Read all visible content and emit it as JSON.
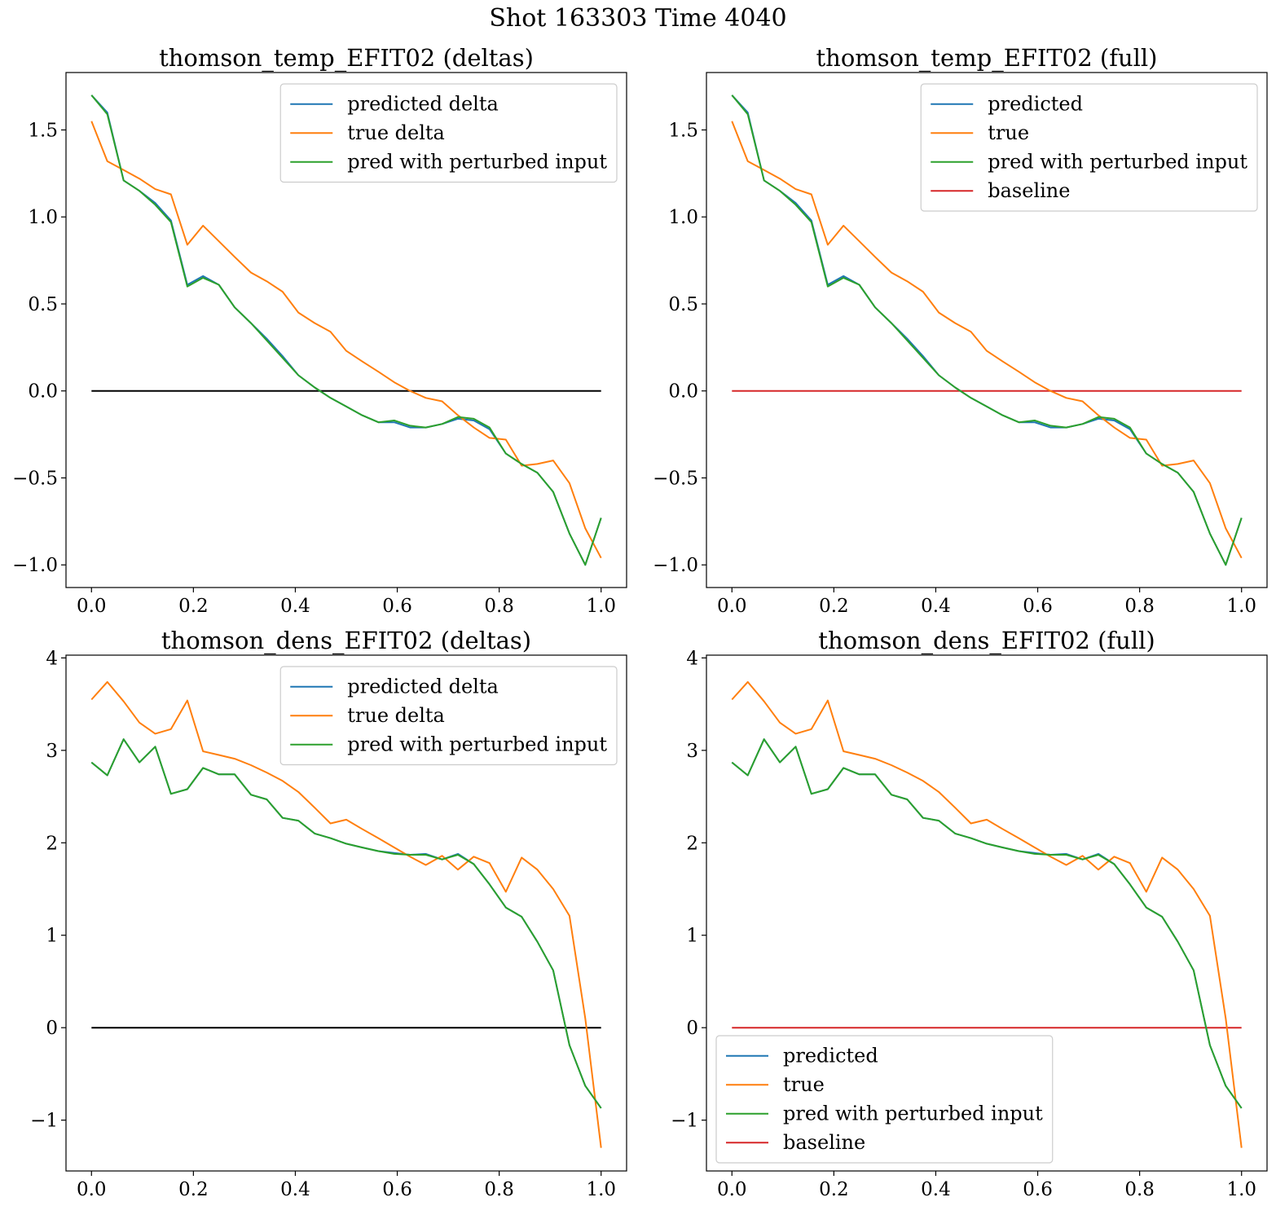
{
  "figure": {
    "suptitle": "Shot 163303   Time 4040"
  },
  "colors": {
    "predicted": "#1f77b4",
    "true": "#ff7f0e",
    "perturbed": "#2ca02c",
    "baseline": "#d62728",
    "zero_line": "#000000"
  },
  "chart_data": [
    {
      "type": "line",
      "title": "thomson_temp_EFIT02 (deltas)",
      "xlim": [
        -0.05,
        1.05
      ],
      "ylim": [
        -1.13,
        1.83
      ],
      "xticks": [
        "0.0",
        "0.2",
        "0.4",
        "0.6",
        "0.8",
        "1.0"
      ],
      "yticks": [
        "1.5",
        "1.0",
        "0.5",
        "0.0",
        "−0.5",
        "−1.0"
      ],
      "legend": {
        "location": "upper right"
      },
      "series": [
        {
          "name": "predicted delta",
          "color": "#1f77b4",
          "x": [
            0.0,
            0.031,
            0.063,
            0.094,
            0.125,
            0.156,
            0.188,
            0.219,
            0.25,
            0.281,
            0.313,
            0.344,
            0.375,
            0.406,
            0.438,
            0.469,
            0.5,
            0.531,
            0.563,
            0.594,
            0.625,
            0.656,
            0.688,
            0.719,
            0.75,
            0.781,
            0.813,
            0.844,
            0.875,
            0.906,
            0.938,
            0.969,
            1.0
          ],
          "y": [
            1.7,
            1.6,
            1.21,
            1.15,
            1.08,
            0.98,
            0.61,
            0.66,
            0.61,
            0.48,
            0.39,
            0.3,
            0.2,
            0.09,
            0.02,
            -0.04,
            -0.09,
            -0.14,
            -0.18,
            -0.18,
            -0.21,
            -0.21,
            -0.19,
            -0.16,
            -0.17,
            -0.22,
            -0.36,
            -0.42,
            -0.47,
            -0.58,
            -0.82,
            -1.0,
            -0.73
          ]
        },
        {
          "name": "true delta",
          "color": "#ff7f0e",
          "x": [
            0.0,
            0.031,
            0.063,
            0.094,
            0.125,
            0.156,
            0.188,
            0.219,
            0.25,
            0.281,
            0.313,
            0.344,
            0.375,
            0.406,
            0.438,
            0.469,
            0.5,
            0.531,
            0.563,
            0.594,
            0.625,
            0.656,
            0.688,
            0.719,
            0.75,
            0.781,
            0.813,
            0.844,
            0.875,
            0.906,
            0.938,
            0.969,
            1.0
          ],
          "y": [
            1.55,
            1.32,
            1.27,
            1.22,
            1.16,
            1.13,
            0.84,
            0.95,
            0.86,
            0.77,
            0.68,
            0.63,
            0.57,
            0.45,
            0.39,
            0.34,
            0.23,
            0.17,
            0.11,
            0.05,
            0.0,
            -0.04,
            -0.06,
            -0.14,
            -0.21,
            -0.27,
            -0.28,
            -0.43,
            -0.42,
            -0.4,
            -0.53,
            -0.79,
            -0.96
          ]
        },
        {
          "name": "pred with perturbed input",
          "color": "#2ca02c",
          "x": [
            0.0,
            0.031,
            0.063,
            0.094,
            0.125,
            0.156,
            0.188,
            0.219,
            0.25,
            0.281,
            0.313,
            0.344,
            0.375,
            0.406,
            0.438,
            0.469,
            0.5,
            0.531,
            0.563,
            0.594,
            0.625,
            0.656,
            0.688,
            0.719,
            0.75,
            0.781,
            0.813,
            0.844,
            0.875,
            0.906,
            0.938,
            0.969,
            1.0
          ],
          "y": [
            1.7,
            1.59,
            1.21,
            1.15,
            1.07,
            0.97,
            0.6,
            0.65,
            0.61,
            0.48,
            0.39,
            0.29,
            0.19,
            0.09,
            0.02,
            -0.04,
            -0.09,
            -0.14,
            -0.18,
            -0.17,
            -0.2,
            -0.21,
            -0.19,
            -0.15,
            -0.16,
            -0.21,
            -0.36,
            -0.42,
            -0.47,
            -0.58,
            -0.82,
            -1.0,
            -0.73
          ]
        },
        {
          "name": "",
          "color": "#000000",
          "x": [
            0.0,
            1.0
          ],
          "y": [
            0.0,
            0.0
          ]
        }
      ]
    },
    {
      "type": "line",
      "title": "thomson_temp_EFIT02 (full)",
      "xlim": [
        -0.05,
        1.05
      ],
      "ylim": [
        -1.13,
        1.83
      ],
      "xticks": [
        "0.0",
        "0.2",
        "0.4",
        "0.6",
        "0.8",
        "1.0"
      ],
      "yticks": [
        "1.5",
        "1.0",
        "0.5",
        "0.0",
        "−0.5",
        "−1.0"
      ],
      "legend": {
        "location": "upper right"
      },
      "series": [
        {
          "name": "predicted",
          "color": "#1f77b4",
          "x": [
            0.0,
            0.031,
            0.063,
            0.094,
            0.125,
            0.156,
            0.188,
            0.219,
            0.25,
            0.281,
            0.313,
            0.344,
            0.375,
            0.406,
            0.438,
            0.469,
            0.5,
            0.531,
            0.563,
            0.594,
            0.625,
            0.656,
            0.688,
            0.719,
            0.75,
            0.781,
            0.813,
            0.844,
            0.875,
            0.906,
            0.938,
            0.969,
            1.0
          ],
          "y": [
            1.7,
            1.6,
            1.21,
            1.15,
            1.08,
            0.98,
            0.61,
            0.66,
            0.61,
            0.48,
            0.39,
            0.3,
            0.2,
            0.09,
            0.02,
            -0.04,
            -0.09,
            -0.14,
            -0.18,
            -0.18,
            -0.21,
            -0.21,
            -0.19,
            -0.16,
            -0.17,
            -0.22,
            -0.36,
            -0.42,
            -0.47,
            -0.58,
            -0.82,
            -1.0,
            -0.73
          ]
        },
        {
          "name": "true",
          "color": "#ff7f0e",
          "x": [
            0.0,
            0.031,
            0.063,
            0.094,
            0.125,
            0.156,
            0.188,
            0.219,
            0.25,
            0.281,
            0.313,
            0.344,
            0.375,
            0.406,
            0.438,
            0.469,
            0.5,
            0.531,
            0.563,
            0.594,
            0.625,
            0.656,
            0.688,
            0.719,
            0.75,
            0.781,
            0.813,
            0.844,
            0.875,
            0.906,
            0.938,
            0.969,
            1.0
          ],
          "y": [
            1.55,
            1.32,
            1.27,
            1.22,
            1.16,
            1.13,
            0.84,
            0.95,
            0.86,
            0.77,
            0.68,
            0.63,
            0.57,
            0.45,
            0.39,
            0.34,
            0.23,
            0.17,
            0.11,
            0.05,
            0.0,
            -0.04,
            -0.06,
            -0.14,
            -0.21,
            -0.27,
            -0.28,
            -0.43,
            -0.42,
            -0.4,
            -0.53,
            -0.79,
            -0.96
          ]
        },
        {
          "name": "pred with perturbed input",
          "color": "#2ca02c",
          "x": [
            0.0,
            0.031,
            0.063,
            0.094,
            0.125,
            0.156,
            0.188,
            0.219,
            0.25,
            0.281,
            0.313,
            0.344,
            0.375,
            0.406,
            0.438,
            0.469,
            0.5,
            0.531,
            0.563,
            0.594,
            0.625,
            0.656,
            0.688,
            0.719,
            0.75,
            0.781,
            0.813,
            0.844,
            0.875,
            0.906,
            0.938,
            0.969,
            1.0
          ],
          "y": [
            1.7,
            1.59,
            1.21,
            1.15,
            1.07,
            0.97,
            0.6,
            0.65,
            0.61,
            0.48,
            0.39,
            0.29,
            0.19,
            0.09,
            0.02,
            -0.04,
            -0.09,
            -0.14,
            -0.18,
            -0.17,
            -0.2,
            -0.21,
            -0.19,
            -0.15,
            -0.16,
            -0.21,
            -0.36,
            -0.42,
            -0.47,
            -0.58,
            -0.82,
            -1.0,
            -0.73
          ]
        },
        {
          "name": "baseline",
          "color": "#d62728",
          "x": [
            0.0,
            1.0
          ],
          "y": [
            0.0,
            0.0
          ]
        }
      ]
    },
    {
      "type": "line",
      "title": "thomson_dens_EFIT02 (deltas)",
      "xlim": [
        -0.05,
        1.05
      ],
      "ylim": [
        -1.55,
        4.03
      ],
      "xticks": [
        "0.0",
        "0.2",
        "0.4",
        "0.6",
        "0.8",
        "1.0"
      ],
      "yticks": [
        "4",
        "3",
        "2",
        "1",
        "0",
        "−1"
      ],
      "legend": {
        "location": "upper right"
      },
      "series": [
        {
          "name": "predicted delta",
          "color": "#1f77b4",
          "x": [
            0.0,
            0.031,
            0.063,
            0.094,
            0.125,
            0.156,
            0.188,
            0.219,
            0.25,
            0.281,
            0.313,
            0.344,
            0.375,
            0.406,
            0.438,
            0.469,
            0.5,
            0.531,
            0.563,
            0.594,
            0.625,
            0.656,
            0.688,
            0.719,
            0.75,
            0.781,
            0.813,
            0.844,
            0.875,
            0.906,
            0.938,
            0.969,
            1.0
          ],
          "y": [
            2.87,
            2.73,
            3.12,
            2.87,
            3.04,
            2.53,
            2.58,
            2.81,
            2.74,
            2.74,
            2.52,
            2.47,
            2.27,
            2.24,
            2.1,
            2.05,
            1.99,
            1.95,
            1.91,
            1.89,
            1.87,
            1.88,
            1.82,
            1.88,
            1.77,
            1.55,
            1.3,
            1.2,
            0.93,
            0.62,
            -0.19,
            -0.63,
            -0.87
          ]
        },
        {
          "name": "true delta",
          "color": "#ff7f0e",
          "x": [
            0.0,
            0.031,
            0.063,
            0.094,
            0.125,
            0.156,
            0.188,
            0.219,
            0.25,
            0.281,
            0.313,
            0.344,
            0.375,
            0.406,
            0.438,
            0.469,
            0.5,
            0.531,
            0.563,
            0.594,
            0.625,
            0.656,
            0.688,
            0.719,
            0.75,
            0.781,
            0.813,
            0.844,
            0.875,
            0.906,
            0.938,
            0.969,
            1.0
          ],
          "y": [
            3.55,
            3.74,
            3.53,
            3.3,
            3.18,
            3.23,
            3.54,
            2.99,
            2.95,
            2.91,
            2.84,
            2.76,
            2.67,
            2.55,
            2.38,
            2.21,
            2.25,
            2.15,
            2.05,
            1.95,
            1.85,
            1.76,
            1.86,
            1.71,
            1.85,
            1.78,
            1.47,
            1.84,
            1.71,
            1.5,
            1.21,
            0.1,
            -1.3
          ]
        },
        {
          "name": "pred with perturbed input",
          "color": "#2ca02c",
          "x": [
            0.0,
            0.031,
            0.063,
            0.094,
            0.125,
            0.156,
            0.188,
            0.219,
            0.25,
            0.281,
            0.313,
            0.344,
            0.375,
            0.406,
            0.438,
            0.469,
            0.5,
            0.531,
            0.563,
            0.594,
            0.625,
            0.656,
            0.688,
            0.719,
            0.75,
            0.781,
            0.813,
            0.844,
            0.875,
            0.906,
            0.938,
            0.969,
            1.0
          ],
          "y": [
            2.87,
            2.73,
            3.12,
            2.87,
            3.04,
            2.53,
            2.58,
            2.81,
            2.74,
            2.74,
            2.52,
            2.47,
            2.27,
            2.24,
            2.1,
            2.05,
            1.99,
            1.95,
            1.91,
            1.88,
            1.87,
            1.87,
            1.82,
            1.87,
            1.77,
            1.55,
            1.3,
            1.2,
            0.93,
            0.62,
            -0.19,
            -0.63,
            -0.87
          ]
        },
        {
          "name": "",
          "color": "#000000",
          "x": [
            0.0,
            1.0
          ],
          "y": [
            0.0,
            0.0
          ]
        }
      ]
    },
    {
      "type": "line",
      "title": "thomson_dens_EFIT02 (full)",
      "xlim": [
        -0.05,
        1.05
      ],
      "ylim": [
        -1.55,
        4.03
      ],
      "xticks": [
        "0.0",
        "0.2",
        "0.4",
        "0.6",
        "0.8",
        "1.0"
      ],
      "yticks": [
        "4",
        "3",
        "2",
        "1",
        "0",
        "−1"
      ],
      "legend": {
        "location": "lower left"
      },
      "series": [
        {
          "name": "predicted",
          "color": "#1f77b4",
          "x": [
            0.0,
            0.031,
            0.063,
            0.094,
            0.125,
            0.156,
            0.188,
            0.219,
            0.25,
            0.281,
            0.313,
            0.344,
            0.375,
            0.406,
            0.438,
            0.469,
            0.5,
            0.531,
            0.563,
            0.594,
            0.625,
            0.656,
            0.688,
            0.719,
            0.75,
            0.781,
            0.813,
            0.844,
            0.875,
            0.906,
            0.938,
            0.969,
            1.0
          ],
          "y": [
            2.87,
            2.73,
            3.12,
            2.87,
            3.04,
            2.53,
            2.58,
            2.81,
            2.74,
            2.74,
            2.52,
            2.47,
            2.27,
            2.24,
            2.1,
            2.05,
            1.99,
            1.95,
            1.91,
            1.89,
            1.87,
            1.88,
            1.82,
            1.88,
            1.77,
            1.55,
            1.3,
            1.2,
            0.93,
            0.62,
            -0.19,
            -0.63,
            -0.87
          ]
        },
        {
          "name": "true",
          "color": "#ff7f0e",
          "x": [
            0.0,
            0.031,
            0.063,
            0.094,
            0.125,
            0.156,
            0.188,
            0.219,
            0.25,
            0.281,
            0.313,
            0.344,
            0.375,
            0.406,
            0.438,
            0.469,
            0.5,
            0.531,
            0.563,
            0.594,
            0.625,
            0.656,
            0.688,
            0.719,
            0.75,
            0.781,
            0.813,
            0.844,
            0.875,
            0.906,
            0.938,
            0.969,
            1.0
          ],
          "y": [
            3.55,
            3.74,
            3.53,
            3.3,
            3.18,
            3.23,
            3.54,
            2.99,
            2.95,
            2.91,
            2.84,
            2.76,
            2.67,
            2.55,
            2.38,
            2.21,
            2.25,
            2.15,
            2.05,
            1.95,
            1.85,
            1.76,
            1.86,
            1.71,
            1.85,
            1.78,
            1.47,
            1.84,
            1.71,
            1.5,
            1.21,
            0.1,
            -1.3
          ]
        },
        {
          "name": "pred with perturbed input",
          "color": "#2ca02c",
          "x": [
            0.0,
            0.031,
            0.063,
            0.094,
            0.125,
            0.156,
            0.188,
            0.219,
            0.25,
            0.281,
            0.313,
            0.344,
            0.375,
            0.406,
            0.438,
            0.469,
            0.5,
            0.531,
            0.563,
            0.594,
            0.625,
            0.656,
            0.688,
            0.719,
            0.75,
            0.781,
            0.813,
            0.844,
            0.875,
            0.906,
            0.938,
            0.969,
            1.0
          ],
          "y": [
            2.87,
            2.73,
            3.12,
            2.87,
            3.04,
            2.53,
            2.58,
            2.81,
            2.74,
            2.74,
            2.52,
            2.47,
            2.27,
            2.24,
            2.1,
            2.05,
            1.99,
            1.95,
            1.91,
            1.88,
            1.87,
            1.87,
            1.82,
            1.87,
            1.77,
            1.55,
            1.3,
            1.2,
            0.93,
            0.62,
            -0.19,
            -0.63,
            -0.87
          ]
        },
        {
          "name": "baseline",
          "color": "#d62728",
          "x": [
            0.0,
            1.0
          ],
          "y": [
            0.0,
            0.0
          ]
        }
      ]
    }
  ]
}
